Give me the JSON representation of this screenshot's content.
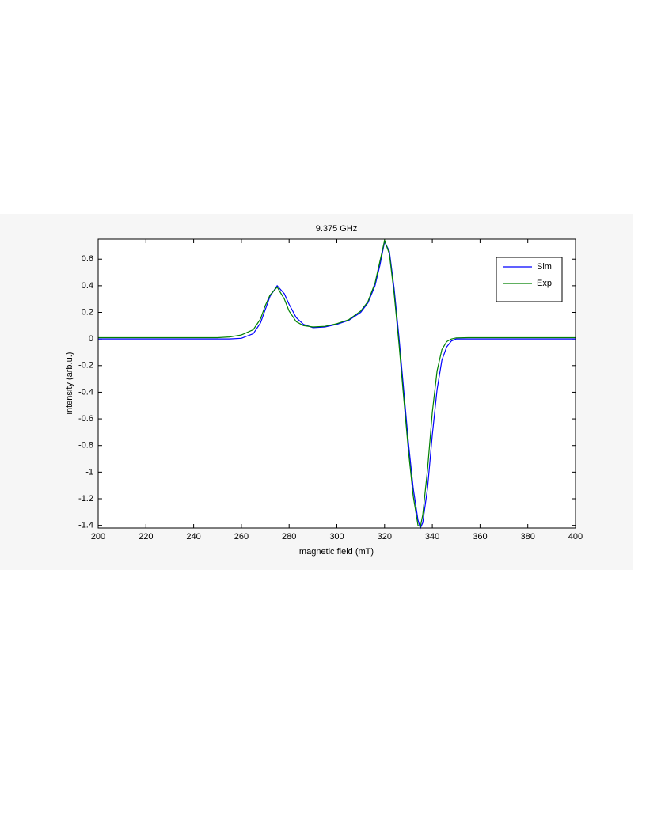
{
  "chart_data": {
    "type": "line",
    "title": "9.375 GHz",
    "xlabel": "magnetic field (mT)",
    "ylabel": "intensity (arb.u.)",
    "x": [
      200,
      210,
      220,
      230,
      240,
      250,
      255,
      260,
      265,
      268,
      270,
      272,
      275,
      278,
      280,
      283,
      286,
      290,
      295,
      300,
      305,
      310,
      313,
      316,
      318,
      320,
      322,
      324,
      326,
      328,
      330,
      332,
      334,
      335,
      336,
      338,
      340,
      342,
      344,
      346,
      348,
      350,
      355,
      360,
      370,
      380,
      390,
      400
    ],
    "series": [
      {
        "name": "Sim",
        "color": "#0000ff",
        "values": [
          0,
          0,
          0,
          0,
          0,
          0,
          0,
          0.005,
          0.04,
          0.12,
          0.22,
          0.32,
          0.4,
          0.34,
          0.26,
          0.16,
          0.11,
          0.085,
          0.09,
          0.11,
          0.14,
          0.2,
          0.27,
          0.4,
          0.55,
          0.73,
          0.66,
          0.38,
          0.02,
          -0.38,
          -0.78,
          -1.12,
          -1.36,
          -1.42,
          -1.38,
          -1.12,
          -0.72,
          -0.38,
          -0.16,
          -0.06,
          -0.015,
          0,
          0,
          0,
          0,
          0,
          0,
          0
        ]
      },
      {
        "name": "Exp",
        "color": "#008000",
        "values": [
          0.01,
          0.01,
          0.01,
          0.01,
          0.01,
          0.01,
          0.015,
          0.03,
          0.07,
          0.15,
          0.25,
          0.33,
          0.39,
          0.3,
          0.21,
          0.13,
          0.1,
          0.09,
          0.095,
          0.115,
          0.145,
          0.21,
          0.28,
          0.42,
          0.58,
          0.74,
          0.64,
          0.34,
          -0.03,
          -0.44,
          -0.84,
          -1.18,
          -1.4,
          -1.41,
          -1.32,
          -0.98,
          -0.55,
          -0.24,
          -0.08,
          -0.02,
          0,
          0.008,
          0.01,
          0.01,
          0.01,
          0.01,
          0.01,
          0.01
        ]
      }
    ],
    "xlim": [
      200,
      400
    ],
    "xticks": [
      200,
      220,
      240,
      260,
      280,
      300,
      320,
      340,
      360,
      380,
      400
    ],
    "ylim": [
      -1.42,
      0.75
    ],
    "yticks": [
      -1.4,
      -1.2,
      -1,
      -0.8,
      -0.6,
      -0.4,
      -0.2,
      0,
      0.2,
      0.4,
      0.6
    ],
    "grid": false,
    "legend": "upper-right"
  }
}
